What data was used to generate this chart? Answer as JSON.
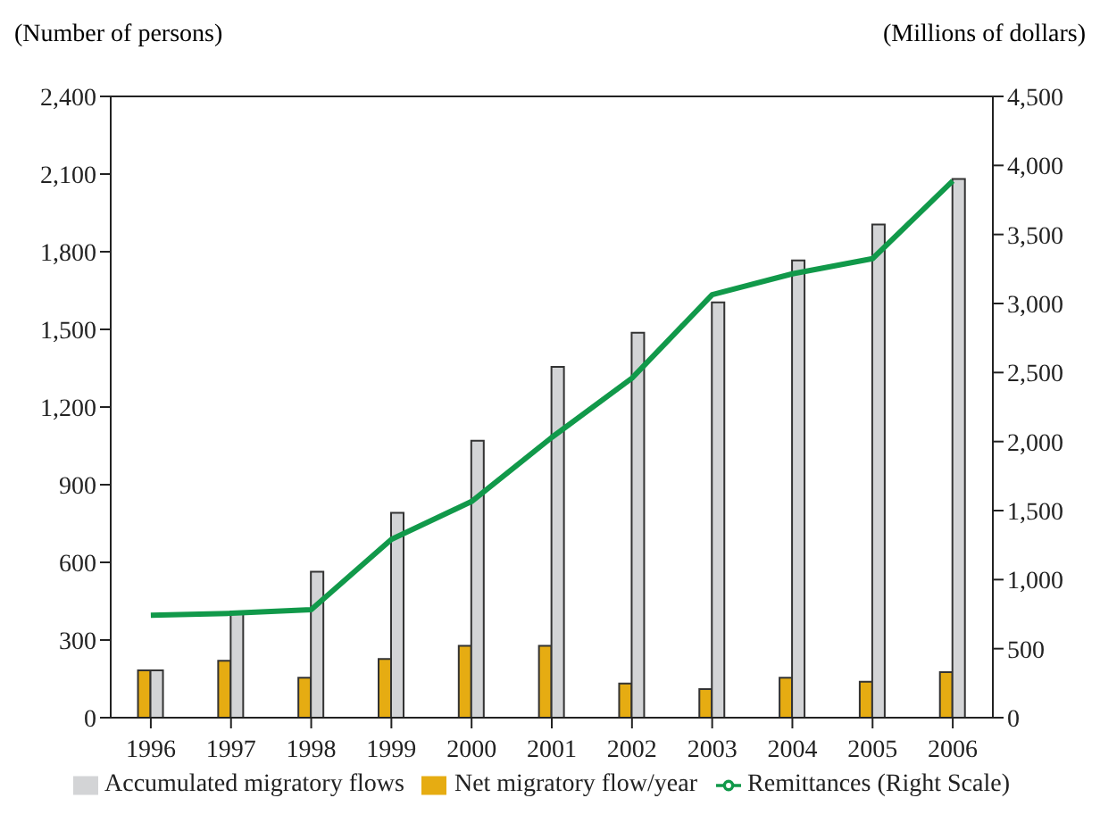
{
  "chart_data": {
    "type": "bar",
    "ylabel": "(Number of persons)",
    "y2label": "(Millions of dollars)",
    "categories": [
      "1996",
      "1997",
      "1998",
      "1999",
      "2000",
      "2001",
      "2002",
      "2003",
      "2004",
      "2005",
      "2006"
    ],
    "series": [
      {
        "name": "Net migratory flow/year",
        "color": "#e6ac12",
        "values": [
          183,
          220,
          154,
          227,
          278,
          278,
          132,
          110,
          154,
          139,
          176
        ]
      },
      {
        "name": "Accumulated migratory flows",
        "color": "#d3d4d6",
        "values": [
          183,
          410,
          564,
          791,
          1070,
          1355,
          1487,
          1604,
          1766,
          1905,
          2081
        ]
      },
      {
        "name": "Remittances (Right Scale)",
        "type": "line",
        "axis": "y2",
        "color": "#11994a",
        "values": [
          742,
          756,
          783,
          1292,
          1566,
          2030,
          2459,
          3064,
          3215,
          3325,
          3888
        ]
      }
    ],
    "ylim": [
      0,
      2400
    ],
    "yticks": [
      0,
      {
        "value": 300,
        "label": "300"
      },
      {
        "value": 600,
        "label": "600"
      },
      {
        "value": 900,
        "label": "900"
      },
      {
        "value": 1200,
        "label": "1,200"
      },
      {
        "value": 1500,
        "label": "1,500"
      },
      {
        "value": 1800,
        "label": "1,800"
      },
      {
        "value": 2100,
        "label": "2,100"
      },
      {
        "value": 2400,
        "label": "2,400"
      }
    ],
    "y2lim": [
      0,
      4500
    ],
    "y2ticks": [
      0,
      {
        "value": 500,
        "label": "500"
      },
      {
        "value": 1000,
        "label": "1,000"
      },
      {
        "value": 1500,
        "label": "1,500"
      },
      {
        "value": 2000,
        "label": "2,000"
      },
      {
        "value": 2500,
        "label": "2,500"
      },
      {
        "value": 3000,
        "label": "3,000"
      },
      {
        "value": 3500,
        "label": "3,500"
      },
      {
        "value": 4000,
        "label": "4,000"
      },
      {
        "value": 4500,
        "label": "4,500"
      }
    ],
    "grid": false,
    "legend": "bottom",
    "marker": "none"
  }
}
